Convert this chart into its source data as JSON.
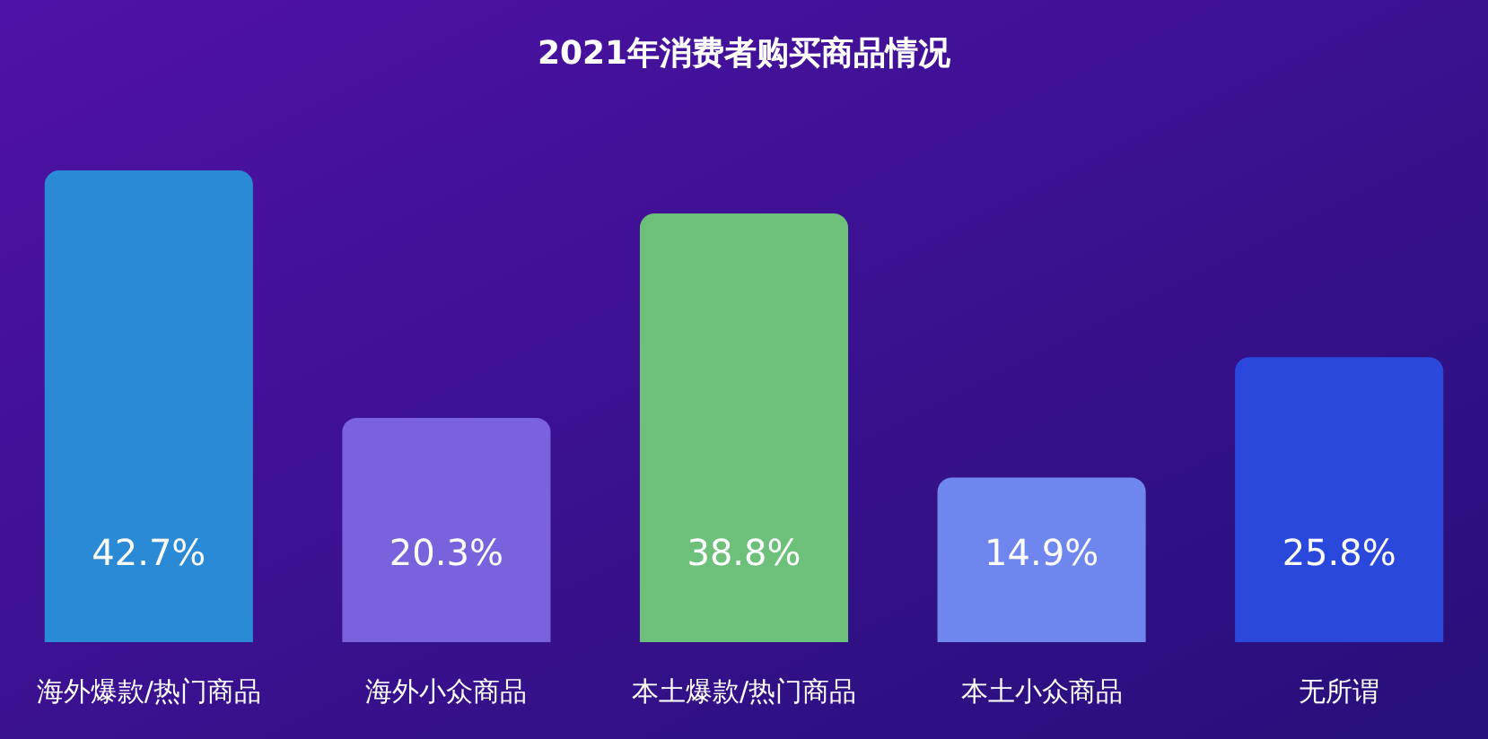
{
  "chart_data": {
    "type": "bar",
    "title": "2021年消费者购买商品情况",
    "categories": [
      "海外爆款/热门商品",
      "海外小众商品",
      "本土爆款/热门商品",
      "本土小众商品",
      "无所谓"
    ],
    "values": [
      42.7,
      20.3,
      38.8,
      14.9,
      25.8
    ],
    "value_labels": [
      "42.7%",
      "20.3%",
      "38.8%",
      "14.9%",
      "25.8%"
    ],
    "colors": [
      "#2a8ad6",
      "#7a62dc",
      "#6cc07a",
      "#6f86ee",
      "#2a48dc"
    ],
    "grid": false
  }
}
